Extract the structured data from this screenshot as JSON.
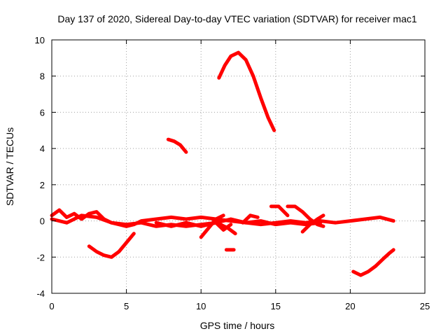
{
  "chart_data": {
    "type": "line",
    "title": "Day 137 of 2020, Sidereal Day-to-day VTEC variation (SDTVAR) for receiver mac1",
    "xlabel": "GPS time / hours",
    "ylabel": "SDTVAR / TECUs",
    "xlim": [
      0,
      25
    ],
    "ylim": [
      -4,
      10
    ],
    "xticks": [
      0,
      5,
      10,
      15,
      20,
      25
    ],
    "xtick_labels": [
      "0",
      "5",
      "10",
      "15",
      "20",
      "25"
    ],
    "yticks": [
      -4,
      -2,
      0,
      2,
      4,
      6,
      8,
      10
    ],
    "ytick_labels": [
      "-4",
      "-2",
      "0",
      "2",
      "4",
      "6",
      "8",
      "10"
    ],
    "grid": true,
    "legend": "none",
    "color": "#ff0000",
    "series": [
      {
        "name": "arc-near-zero-a",
        "x": [
          0,
          0.5,
          1,
          1.5,
          2,
          2.5,
          3,
          3.5,
          4,
          4.5,
          5,
          5.5,
          6,
          7,
          8,
          9,
          10,
          11,
          12,
          13,
          14,
          15,
          16,
          17,
          18,
          19,
          20,
          21,
          22,
          22.9
        ],
        "y": [
          0.3,
          0.6,
          0.2,
          0.4,
          0.1,
          0.4,
          0.5,
          0.1,
          -0.1,
          -0.2,
          -0.3,
          -0.2,
          0.0,
          0.1,
          0.2,
          0.1,
          0.2,
          0.1,
          0.0,
          -0.1,
          -0.2,
          -0.1,
          0.0,
          -0.1,
          0.0,
          -0.1,
          0.0,
          0.1,
          0.2,
          0.0
        ]
      },
      {
        "name": "arc-near-zero-b",
        "x": [
          0,
          1,
          2,
          3,
          4,
          5,
          6,
          7,
          8,
          9,
          10,
          11,
          12,
          13,
          14,
          15,
          16,
          17,
          18
        ],
        "y": [
          0.1,
          -0.1,
          0.3,
          0.2,
          -0.1,
          -0.2,
          -0.1,
          -0.3,
          -0.2,
          -0.3,
          -0.2,
          -0.1,
          0.1,
          -0.1,
          0.0,
          -0.2,
          -0.1,
          -0.2,
          -0.1
        ]
      },
      {
        "name": "arc-near-zero-c",
        "x": [
          7,
          8,
          9,
          10,
          11,
          11.5,
          12
        ],
        "y": [
          -0.1,
          -0.3,
          -0.1,
          -0.3,
          -0.1,
          -0.5,
          -0.2
        ]
      },
      {
        "name": "arc-dip-10",
        "x": [
          10,
          10.5,
          11,
          11.5
        ],
        "y": [
          -0.9,
          -0.4,
          0.1,
          0.3
        ]
      },
      {
        "name": "arc-dip-11",
        "x": [
          10.8,
          11.3,
          11.8,
          12.3
        ],
        "y": [
          0.1,
          -0.2,
          -0.4,
          -0.7
        ]
      },
      {
        "name": "arc-hump-13",
        "x": [
          12.8,
          13.3,
          13.8
        ],
        "y": [
          -0.1,
          0.3,
          0.2
        ]
      },
      {
        "name": "arc-hump-15",
        "x": [
          14.7,
          15.2,
          15.8
        ],
        "y": [
          0.8,
          0.8,
          0.3
        ]
      },
      {
        "name": "arc-hump-16",
        "x": [
          15.8,
          16.3,
          16.8,
          17.3,
          17.8,
          18.2
        ],
        "y": [
          0.8,
          0.8,
          0.5,
          0.1,
          -0.2,
          -0.3
        ]
      },
      {
        "name": "arc-dip-17",
        "x": [
          16.8,
          17.3,
          17.8,
          18.2
        ],
        "y": [
          -0.6,
          -0.2,
          0.1,
          0.3
        ]
      },
      {
        "name": "arc-minus-2",
        "x": [
          2.5,
          3,
          3.5,
          4,
          4.5,
          5,
          5.5
        ],
        "y": [
          -1.4,
          -1.7,
          -1.9,
          -2.0,
          -1.7,
          -1.2,
          -0.7
        ]
      },
      {
        "name": "arc-4",
        "x": [
          7.8,
          8.2,
          8.6,
          9.0
        ],
        "y": [
          4.5,
          4.4,
          4.2,
          3.8
        ]
      },
      {
        "name": "arc-9",
        "x": [
          11.2,
          11.6,
          12.0,
          12.5,
          13.0,
          13.5,
          14.0,
          14.5,
          14.9
        ],
        "y": [
          7.9,
          8.6,
          9.1,
          9.3,
          8.9,
          8.0,
          6.8,
          5.7,
          5.0
        ]
      },
      {
        "name": "arc-minus-1-6",
        "x": [
          11.7,
          12.2
        ],
        "y": [
          -1.6,
          -1.6
        ]
      },
      {
        "name": "arc-minus-3",
        "x": [
          20.2,
          20.7,
          21.2,
          21.7,
          22.2,
          22.6,
          22.9
        ],
        "y": [
          -2.8,
          -3.0,
          -2.8,
          -2.5,
          -2.1,
          -1.8,
          -1.6
        ]
      }
    ]
  }
}
